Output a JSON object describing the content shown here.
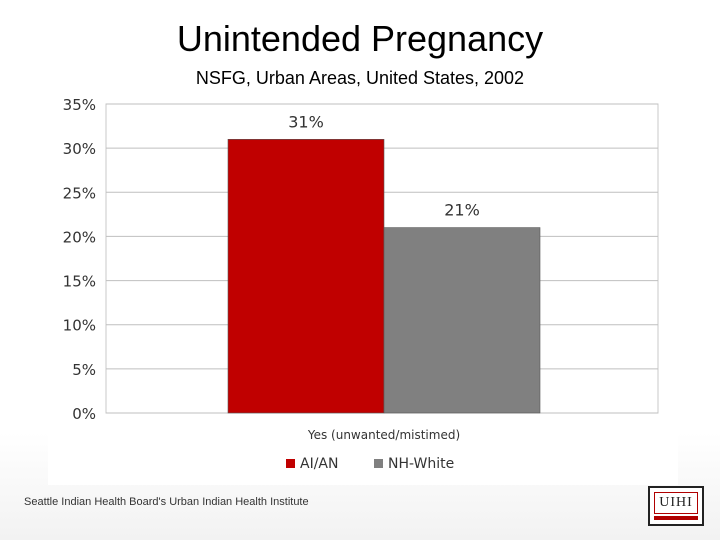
{
  "slide": {
    "title": "Unintended Pregnancy",
    "subtitle": "NSFG, Urban Areas, United States, 2002",
    "footer": "Seattle Indian Health Board's Urban Indian Health Institute",
    "logo_text": "UIHI"
  },
  "chart_data": {
    "type": "bar",
    "categories": [
      "Yes (unwanted/mistimed)"
    ],
    "series": [
      {
        "name": "AI/AN",
        "values": [
          31
        ],
        "label": "31%",
        "color": "#c00000"
      },
      {
        "name": "NH-White",
        "values": [
          21
        ],
        "label": "21%",
        "color": "#808080"
      }
    ],
    "xlabel": "Yes (unwanted/mistimed)",
    "ylim": [
      0,
      35
    ],
    "yticks": [
      "0%",
      "5%",
      "10%",
      "15%",
      "20%",
      "25%",
      "30%",
      "35%"
    ],
    "grid": true,
    "legend": "bottom"
  }
}
